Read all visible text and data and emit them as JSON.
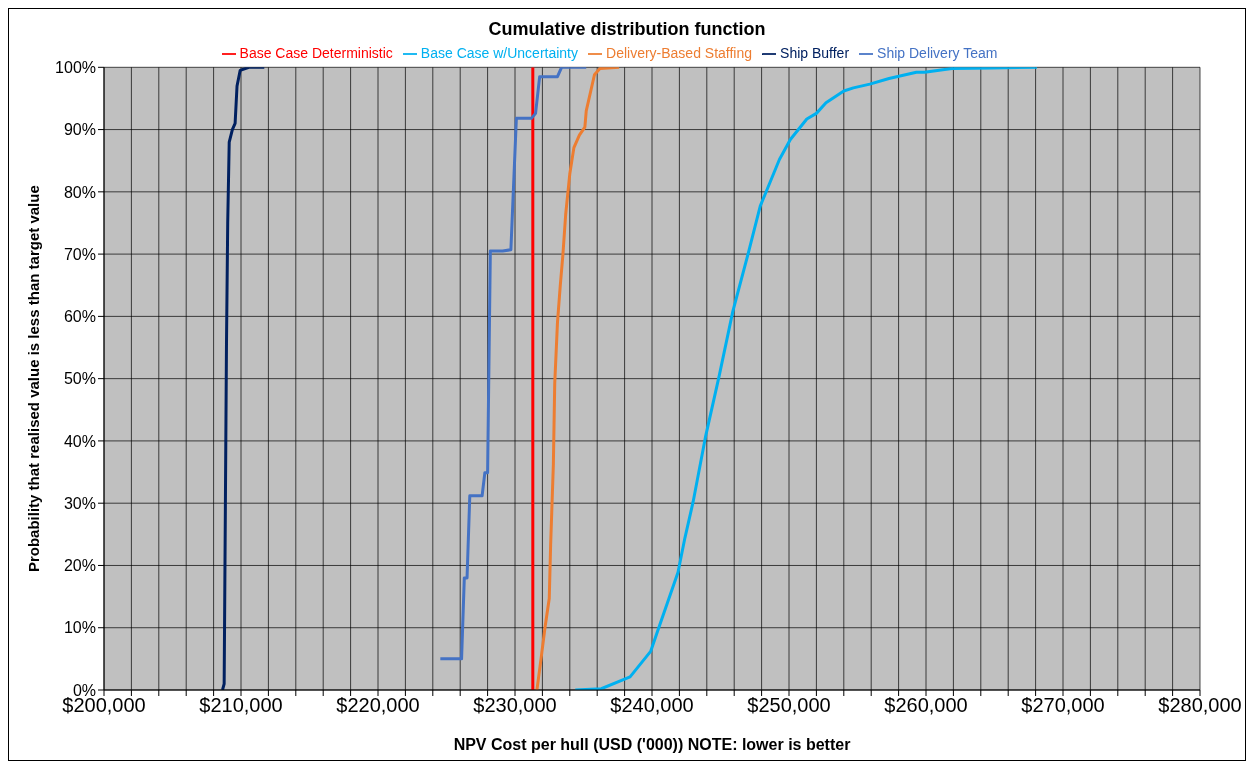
{
  "chart_data": {
    "type": "line",
    "title": "Cumulative distribution function",
    "xlabel": "NPV Cost per hull (USD ('000)) NOTE: lower is better",
    "ylabel": "Probability that realised value is less than target value",
    "xlim": [
      200000,
      280000
    ],
    "ylim": [
      0,
      100
    ],
    "xticks": [
      {
        "value": 200000,
        "label": "$200,000"
      },
      {
        "value": 202000,
        "label": null
      },
      {
        "value": 204000,
        "label": null
      },
      {
        "value": 206000,
        "label": null
      },
      {
        "value": 208000,
        "label": null
      },
      {
        "value": 210000,
        "label": "$210,000"
      },
      {
        "value": 212000,
        "label": null
      },
      {
        "value": 214000,
        "label": null
      },
      {
        "value": 216000,
        "label": null
      },
      {
        "value": 218000,
        "label": null
      },
      {
        "value": 220000,
        "label": "$220,000"
      },
      {
        "value": 222000,
        "label": null
      },
      {
        "value": 224000,
        "label": null
      },
      {
        "value": 226000,
        "label": null
      },
      {
        "value": 228000,
        "label": null
      },
      {
        "value": 230000,
        "label": "$230,000"
      },
      {
        "value": 232000,
        "label": null
      },
      {
        "value": 234000,
        "label": null
      },
      {
        "value": 236000,
        "label": null
      },
      {
        "value": 238000,
        "label": null
      },
      {
        "value": 240000,
        "label": "$240,000"
      },
      {
        "value": 242000,
        "label": null
      },
      {
        "value": 244000,
        "label": null
      },
      {
        "value": 246000,
        "label": null
      },
      {
        "value": 248000,
        "label": null
      },
      {
        "value": 250000,
        "label": "$250,000"
      },
      {
        "value": 252000,
        "label": null
      },
      {
        "value": 254000,
        "label": null
      },
      {
        "value": 256000,
        "label": null
      },
      {
        "value": 258000,
        "label": null
      },
      {
        "value": 260000,
        "label": "$260,000"
      },
      {
        "value": 262000,
        "label": null
      },
      {
        "value": 264000,
        "label": null
      },
      {
        "value": 266000,
        "label": null
      },
      {
        "value": 268000,
        "label": null
      },
      {
        "value": 270000,
        "label": "$270,000"
      },
      {
        "value": 272000,
        "label": null
      },
      {
        "value": 274000,
        "label": null
      },
      {
        "value": 276000,
        "label": null
      },
      {
        "value": 278000,
        "label": null
      },
      {
        "value": 280000,
        "label": "$280,000"
      }
    ],
    "yticks": [
      {
        "value": 0,
        "label": "0%"
      },
      {
        "value": 10,
        "label": "10%"
      },
      {
        "value": 20,
        "label": "20%"
      },
      {
        "value": 30,
        "label": "30%"
      },
      {
        "value": 40,
        "label": "40%"
      },
      {
        "value": 50,
        "label": "50%"
      },
      {
        "value": 60,
        "label": "60%"
      },
      {
        "value": 70,
        "label": "70%"
      },
      {
        "value": 80,
        "label": "80%"
      },
      {
        "value": 90,
        "label": "90%"
      },
      {
        "value": 100,
        "label": "100%"
      }
    ],
    "grid": true,
    "legend": "top",
    "marker": "none",
    "series": [
      {
        "name": "Base Case Deterministic",
        "color": "#ff0000",
        "x": [
          231300,
          231300
        ],
        "values": [
          0,
          100
        ]
      },
      {
        "name": "Base Case w/Uncertainty",
        "color": "#00b0f0",
        "x": [
          234400,
          236300,
          238400,
          239900,
          240400,
          241900,
          242400,
          243000,
          243900,
          244900,
          245900,
          247000,
          247900,
          249300,
          250100,
          251300,
          252000,
          252700,
          254000,
          254700,
          255900,
          257300,
          259300,
          259900,
          261900,
          264700,
          268100
        ],
        "values": [
          0,
          0.2,
          2.1,
          6.2,
          9.4,
          18.9,
          24.4,
          30.2,
          40.6,
          50.4,
          60.8,
          69.9,
          77.7,
          85.2,
          88.4,
          91.7,
          92.6,
          94.3,
          96.2,
          96.7,
          97.3,
          98.2,
          99.2,
          99.2,
          99.8,
          99.9,
          100
        ]
      },
      {
        "name": "Delivery-Based Staffing",
        "color": "#ed7d31",
        "x": [
          231600,
          231900,
          232200,
          232500,
          232600,
          232800,
          232900,
          233100,
          233300,
          233500,
          233700,
          234000,
          234300,
          234700,
          235100,
          235200,
          235800,
          236200,
          237600
        ],
        "values": [
          0,
          5,
          10.2,
          14.7,
          23.2,
          36.2,
          49.2,
          59,
          64.8,
          70,
          76.4,
          82.9,
          87.1,
          89.1,
          90.4,
          93,
          98.8,
          99.8,
          100
        ]
      },
      {
        "name": "Ship Delivery Team",
        "color": "#4472c4",
        "x": [
          224550,
          226100,
          226300,
          226500,
          226700,
          227600,
          227800,
          228000,
          228200,
          229100,
          229700,
          230100,
          231200,
          231500,
          231800,
          233100,
          233400,
          235200
        ],
        "values": [
          5,
          5,
          18,
          18,
          31.2,
          31.2,
          34.9,
          34.9,
          70.5,
          70.5,
          70.7,
          91.8,
          91.8,
          92.6,
          98.5,
          98.5,
          100,
          100
        ]
      },
      {
        "name": "Ship Buffer",
        "color": "#002060",
        "x": [
          208650,
          208770,
          208860,
          208940,
          209030,
          209140,
          209370,
          209570,
          209710,
          209940,
          210570,
          211700
        ],
        "values": [
          0,
          1,
          29.5,
          55.5,
          75,
          88,
          90,
          91,
          97,
          99.5,
          100,
          100
        ]
      }
    ]
  }
}
